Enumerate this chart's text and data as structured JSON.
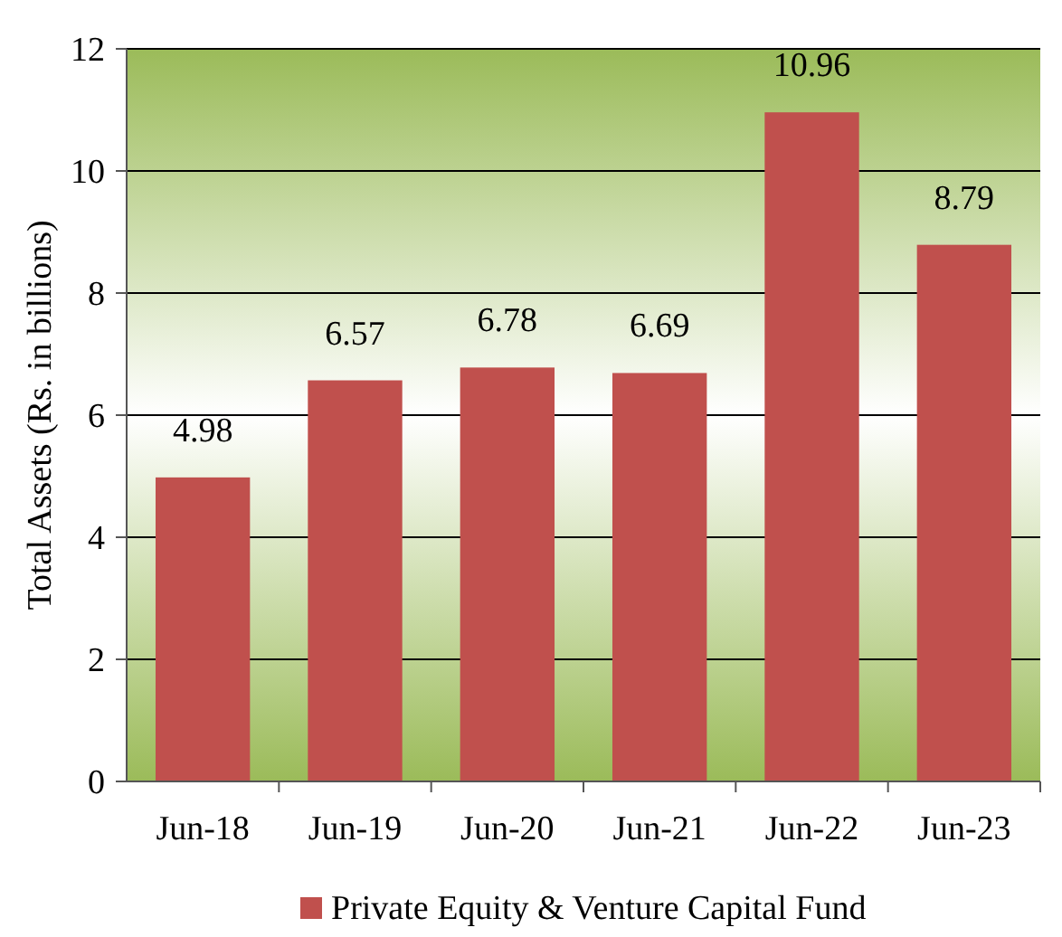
{
  "chart_data": {
    "type": "bar",
    "ylabel": "Total Assets  (Rs. in billions)",
    "categories": [
      "Jun-18",
      "Jun-19",
      "Jun-20",
      "Jun-21",
      "Jun-22",
      "Jun-23"
    ],
    "series": [
      {
        "name": "Private Equity & Venture Capital Fund",
        "color": "#c0504d",
        "values": [
          4.98,
          6.57,
          6.78,
          6.69,
          10.96,
          8.79
        ]
      }
    ],
    "ylim": [
      0,
      12
    ],
    "yticks": [
      0,
      2,
      4,
      6,
      8,
      10,
      12
    ],
    "grid": "y",
    "data_labels": true,
    "legend": "bottom"
  }
}
